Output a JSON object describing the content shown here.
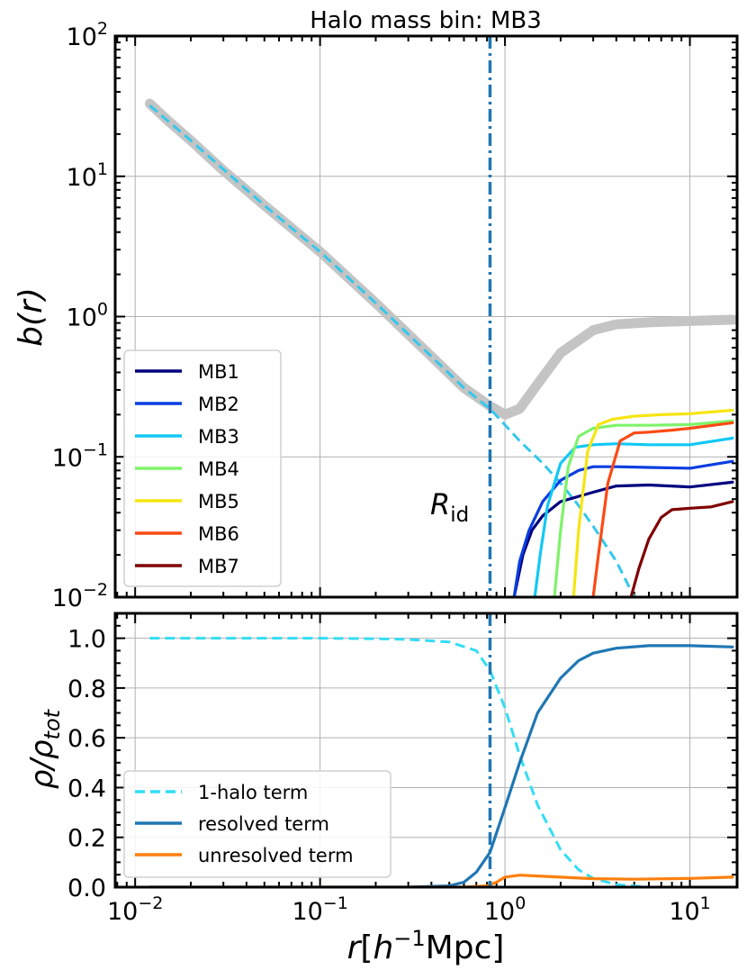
{
  "chart_data": [
    {
      "panel": "top",
      "type": "line",
      "title": "Halo mass bin: MB3",
      "ylabel": "b(r)",
      "xlabel": "",
      "xscale": "log",
      "yscale": "log",
      "xlim": [
        0.0078,
        18
      ],
      "ylim": [
        0.01,
        100
      ],
      "x_ticks": [
        "10^{-2}",
        "10^{-1}",
        "10^{0}",
        "10^{1}"
      ],
      "y_ticks": [
        "10^{-2}",
        "10^{-1}",
        "10^{0}",
        "10^{1}",
        "10^{2}"
      ],
      "grid": true,
      "legend_position": "lower-left",
      "vline": {
        "x": 0.83,
        "label": "R_id",
        "color": "#1f77b4"
      },
      "series": [
        {
          "name": "",
          "color": "#c4c4c4",
          "style": "thick",
          "x": [
            0.012,
            0.015,
            0.02,
            0.03,
            0.05,
            0.1,
            0.2,
            0.4,
            0.6,
            0.83,
            1.0,
            1.2,
            1.5,
            2.0,
            3.0,
            4.0,
            6.0,
            10.0,
            17.0
          ],
          "y": [
            33,
            25,
            18,
            11,
            6.2,
            2.9,
            1.25,
            0.52,
            0.31,
            0.23,
            0.2,
            0.22,
            0.33,
            0.55,
            0.8,
            0.88,
            0.91,
            0.93,
            0.95
          ]
        },
        {
          "name": "",
          "color": "#33c8ee",
          "style": "dashed",
          "x": [
            0.012,
            0.02,
            0.05,
            0.1,
            0.2,
            0.4,
            0.6,
            0.83,
            1.2,
            1.6,
            2.0,
            2.5,
            3.0,
            4.0,
            5.0
          ],
          "y": [
            32,
            18,
            6.2,
            2.9,
            1.25,
            0.52,
            0.31,
            0.22,
            0.13,
            0.09,
            0.065,
            0.045,
            0.032,
            0.018,
            0.01
          ]
        },
        {
          "name": "MB1",
          "color": "#00007f",
          "x": [
            1.12,
            1.25,
            1.4,
            1.6,
            2.0,
            3.0,
            4.0,
            6.0,
            10.0,
            17.0
          ],
          "y": [
            0.01,
            0.02,
            0.03,
            0.038,
            0.048,
            0.056,
            0.062,
            0.063,
            0.061,
            0.066
          ]
        },
        {
          "name": "MB2",
          "color": "#0a3ee0",
          "x": [
            1.12,
            1.2,
            1.35,
            1.6,
            2.0,
            2.5,
            3.0,
            4.0,
            6.0,
            10.0,
            17.0
          ],
          "y": [
            0.01,
            0.018,
            0.03,
            0.048,
            0.068,
            0.08,
            0.085,
            0.085,
            0.084,
            0.083,
            0.093
          ]
        },
        {
          "name": "MB3",
          "color": "#12c8f5",
          "x": [
            1.45,
            1.55,
            1.7,
            2.0,
            2.4,
            3.0,
            4.0,
            6.0,
            10.0,
            17.0
          ],
          "y": [
            0.01,
            0.02,
            0.045,
            0.09,
            0.117,
            0.122,
            0.124,
            0.122,
            0.122,
            0.136
          ]
        },
        {
          "name": "MB4",
          "color": "#7ef36a",
          "x": [
            1.85,
            2.0,
            2.2,
            2.5,
            3.0,
            4.0,
            6.0,
            10.0,
            17.0
          ],
          "y": [
            0.01,
            0.03,
            0.085,
            0.14,
            0.16,
            0.168,
            0.168,
            0.17,
            0.18
          ]
        },
        {
          "name": "MB5",
          "color": "#f6e511",
          "x": [
            2.35,
            2.5,
            2.8,
            3.2,
            3.8,
            5.0,
            7.0,
            10.0,
            17.0
          ],
          "y": [
            0.01,
            0.03,
            0.11,
            0.17,
            0.185,
            0.195,
            0.2,
            0.203,
            0.215
          ]
        },
        {
          "name": "MB6",
          "color": "#fc4a14",
          "x": [
            3.0,
            3.2,
            3.6,
            4.2,
            5.0,
            6.0,
            8.0,
            10.0,
            17.0
          ],
          "y": [
            0.01,
            0.02,
            0.065,
            0.13,
            0.148,
            0.15,
            0.155,
            0.16,
            0.175
          ]
        },
        {
          "name": "MB7",
          "color": "#7f0000",
          "x": [
            4.8,
            5.3,
            6.0,
            7.0,
            8.0,
            10.0,
            13.0,
            17.0
          ],
          "y": [
            0.01,
            0.016,
            0.026,
            0.037,
            0.042,
            0.043,
            0.044,
            0.048
          ]
        }
      ]
    },
    {
      "panel": "bottom",
      "type": "line",
      "title": "",
      "xlabel": "r[h^{-1}Mpc]",
      "ylabel": "ρ/ρ_tot",
      "xscale": "log",
      "xlim": [
        0.0078,
        18
      ],
      "ylim": [
        0.0,
        1.1
      ],
      "x_ticks": [
        "10^{-2}",
        "10^{-1}",
        "10^{0}",
        "10^{1}"
      ],
      "y_ticks": [
        "0.0",
        "0.2",
        "0.4",
        "0.6",
        "0.8",
        "1.0"
      ],
      "grid": true,
      "legend_position": "lower-left",
      "vline": {
        "x": 0.83,
        "color": "#1f77b4"
      },
      "series": [
        {
          "name": "1-halo term",
          "color": "#33ddf5",
          "style": "dashed",
          "x": [
            0.012,
            0.05,
            0.1,
            0.2,
            0.3,
            0.5,
            0.7,
            0.83,
            1.0,
            1.2,
            1.5,
            2.0,
            2.5,
            3.0,
            4.0,
            6.0,
            10.0,
            17.0
          ],
          "y": [
            1.0,
            1.0,
            1.0,
            0.998,
            0.995,
            0.985,
            0.95,
            0.87,
            0.72,
            0.53,
            0.33,
            0.15,
            0.07,
            0.035,
            0.01,
            0.0,
            0.0,
            0.0
          ]
        },
        {
          "name": "resolved term",
          "color": "#1f77b4",
          "style": "solid",
          "x": [
            0.012,
            0.1,
            0.3,
            0.5,
            0.6,
            0.7,
            0.83,
            1.0,
            1.2,
            1.5,
            2.0,
            2.5,
            3.0,
            4.0,
            6.0,
            10.0,
            17.0
          ],
          "y": [
            0.0,
            0.0,
            0.0,
            0.005,
            0.02,
            0.06,
            0.14,
            0.32,
            0.5,
            0.7,
            0.84,
            0.91,
            0.94,
            0.96,
            0.97,
            0.97,
            0.965
          ]
        },
        {
          "name": "unresolved term",
          "color": "#ff7f0e",
          "style": "solid",
          "x": [
            0.012,
            0.3,
            0.6,
            0.8,
            0.9,
            1.0,
            1.2,
            1.5,
            2.0,
            3.0,
            5.0,
            10.0,
            17.0
          ],
          "y": [
            0.0,
            0.0,
            0.0,
            0.005,
            0.02,
            0.04,
            0.048,
            0.045,
            0.04,
            0.034,
            0.032,
            0.035,
            0.04
          ]
        }
      ]
    }
  ]
}
